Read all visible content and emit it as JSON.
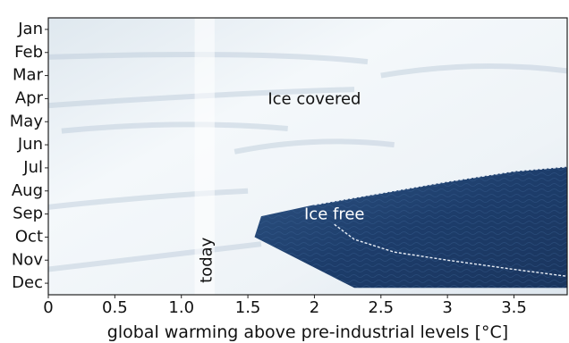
{
  "chart_data": {
    "type": "area",
    "xlabel": "global warming above pre-industrial levels [°C]",
    "ylabel": "",
    "xlim": [
      0,
      3.9
    ],
    "xticks": [
      0,
      0.5,
      1.0,
      1.5,
      2,
      2.5,
      3,
      3.5
    ],
    "xtick_labels": [
      "0",
      "0.5",
      "1.0",
      "1.5",
      "2",
      "2.5",
      "3",
      "3.5"
    ],
    "months": [
      "Jan",
      "Feb",
      "Mar",
      "Apr",
      "May",
      "Jun",
      "Jul",
      "Aug",
      "Sep",
      "Oct",
      "Nov",
      "Dec"
    ],
    "today": {
      "x": 1.1,
      "width": 0.15,
      "label": "today"
    },
    "regions": [
      {
        "label": "Ice covered",
        "color": "#ffffff",
        "label_x": 2.0,
        "label_month": 3
      },
      {
        "label": "Ice free",
        "color": "#ffffff",
        "label_x": 2.15,
        "label_month": 8
      }
    ],
    "ice_free_boundary": {
      "style": "dashed",
      "color": "#e8eef6",
      "points": [
        {
          "x": 1.6,
          "month": 8.1
        },
        {
          "x": 2.0,
          "month": 7.6
        },
        {
          "x": 2.5,
          "month": 7.1
        },
        {
          "x": 3.0,
          "month": 6.6
        },
        {
          "x": 3.5,
          "month": 6.15
        },
        {
          "x": 3.9,
          "month": 5.95
        }
      ],
      "lower_points": [
        {
          "x": 2.15,
          "month": 8.45
        },
        {
          "x": 2.3,
          "month": 9.1
        },
        {
          "x": 2.6,
          "month": 9.65
        },
        {
          "x": 3.0,
          "month": 10.0
        },
        {
          "x": 3.5,
          "month": 10.4
        },
        {
          "x": 3.9,
          "month": 10.7
        }
      ]
    },
    "grid": false,
    "legend": "none"
  }
}
